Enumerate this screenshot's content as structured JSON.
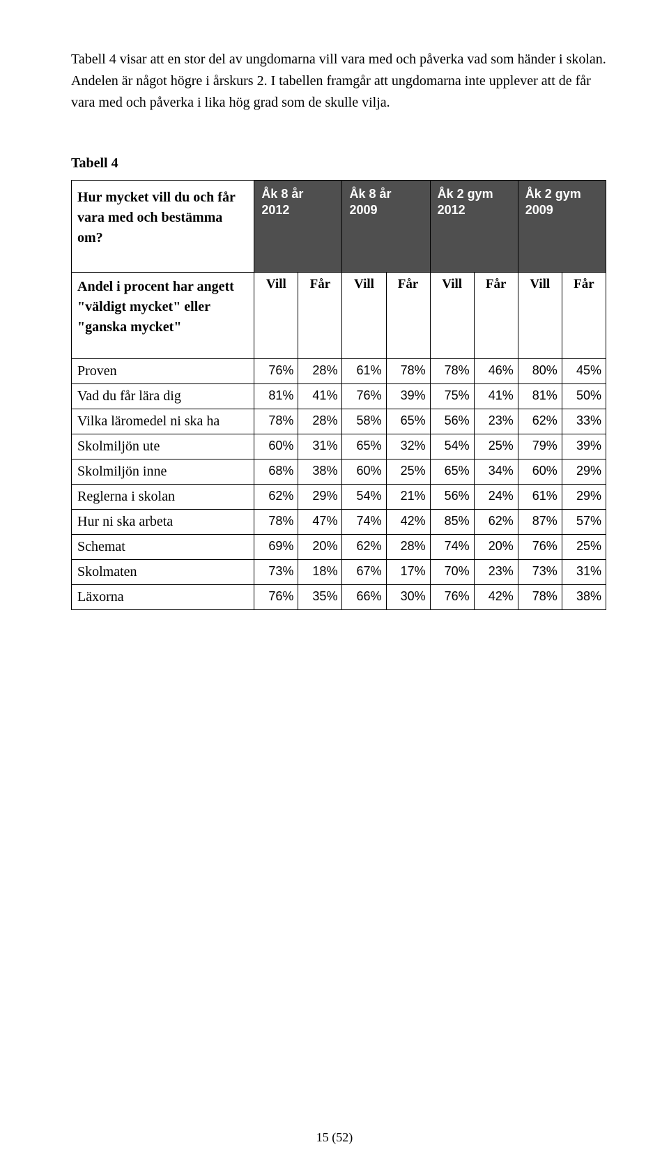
{
  "intro": "Tabell 4 visar att en stor del av ungdomarna vill vara med och påverka vad som händer i skolan. Andelen är något högre i årskurs 2. I tabellen framgår att ungdomarna inte upplever att de får vara med och påverka i lika hög grad som de skulle vilja.",
  "tabell_label": "Tabell 4",
  "header_left": "Hur mycket vill du och får vara med och bestämma om?",
  "sub_left": "Andel i procent har angett \"väldigt mycket\" eller \"ganska mycket\"",
  "groups": [
    {
      "l1": "Åk 8 år",
      "l2": "2012"
    },
    {
      "l1": "Åk 8 år",
      "l2": "2009"
    },
    {
      "l1": "Åk 2 gym",
      "l2": "2012"
    },
    {
      "l1": "Åk 2 gym",
      "l2": "2009"
    }
  ],
  "sub_headers": [
    "Vill",
    "Får",
    "Vill",
    "Får",
    "Vill",
    "Får",
    "Vill",
    "Får"
  ],
  "rows": [
    {
      "label": "Proven",
      "v": [
        "76%",
        "28%",
        "61%",
        "78%",
        "78%",
        "46%",
        "80%",
        "45%"
      ]
    },
    {
      "label": "Vad du får lära dig",
      "v": [
        "81%",
        "41%",
        "76%",
        "39%",
        "75%",
        "41%",
        "81%",
        "50%"
      ]
    },
    {
      "label": "Vilka läromedel ni ska ha",
      "v": [
        "78%",
        "28%",
        "58%",
        "65%",
        "56%",
        "23%",
        "62%",
        "33%"
      ]
    },
    {
      "label": "Skolmiljön ute",
      "v": [
        "60%",
        "31%",
        "65%",
        "32%",
        "54%",
        "25%",
        "79%",
        "39%"
      ]
    },
    {
      "label": "Skolmiljön inne",
      "v": [
        "68%",
        "38%",
        "60%",
        "25%",
        "65%",
        "34%",
        "60%",
        "29%"
      ]
    },
    {
      "label": "Reglerna i skolan",
      "v": [
        "62%",
        "29%",
        "54%",
        "21%",
        "56%",
        "24%",
        "61%",
        "29%"
      ]
    },
    {
      "label": "Hur ni ska arbeta",
      "v": [
        "78%",
        "47%",
        "74%",
        "42%",
        "85%",
        "62%",
        "87%",
        "57%"
      ]
    },
    {
      "label": "Schemat",
      "v": [
        "69%",
        "20%",
        "62%",
        "28%",
        "74%",
        "20%",
        "76%",
        "25%"
      ]
    },
    {
      "label": "Skolmaten",
      "v": [
        "73%",
        "18%",
        "67%",
        "17%",
        "70%",
        "23%",
        "73%",
        "31%"
      ]
    },
    {
      "label": "Läxorna",
      "v": [
        "76%",
        "35%",
        "66%",
        "30%",
        "76%",
        "42%",
        "78%",
        "38%"
      ]
    }
  ],
  "pagenum": "15 (52)",
  "colors": {
    "header_bg": "#4f4f4f",
    "header_fg": "#ffffff",
    "border": "#000000",
    "page_bg": "#ffffff"
  },
  "col_widths": {
    "label": "262px",
    "data": "63px"
  }
}
